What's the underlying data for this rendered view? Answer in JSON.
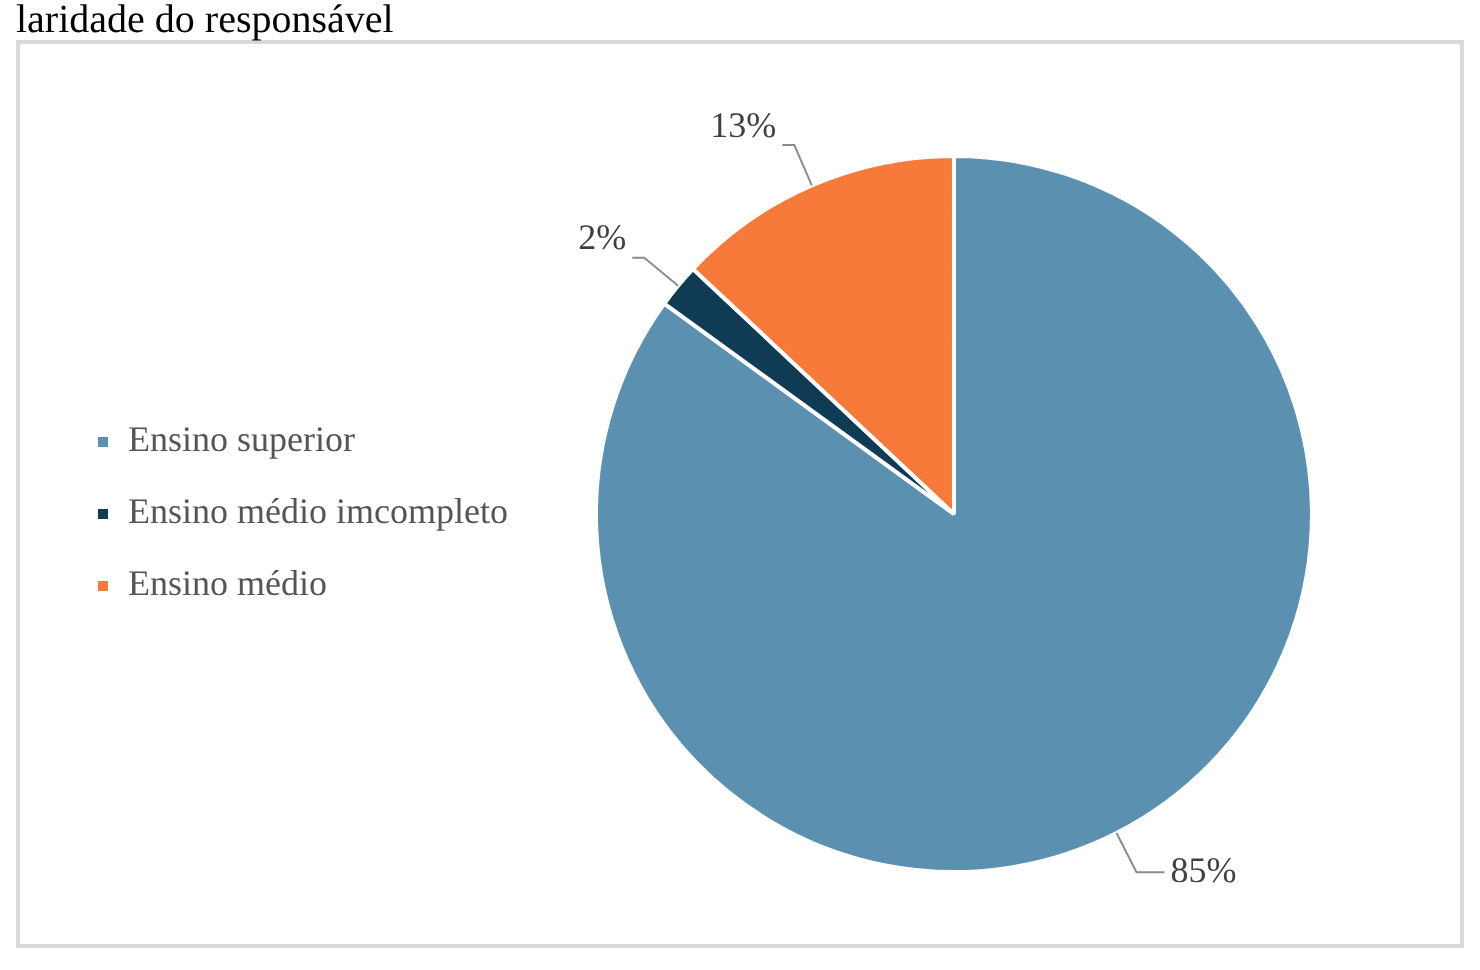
{
  "chart_data": {
    "type": "pie",
    "title": "laridade do responsável",
    "categories": [
      "Ensino superior",
      "Ensino médio imcompleto",
      "Ensino médio"
    ],
    "values": [
      85,
      2,
      13
    ],
    "colors": [
      "#5b90b0",
      "#0f3b55",
      "#f77a3a"
    ],
    "value_labels": [
      "85%",
      "2%",
      "13%"
    ],
    "legend": "left"
  }
}
